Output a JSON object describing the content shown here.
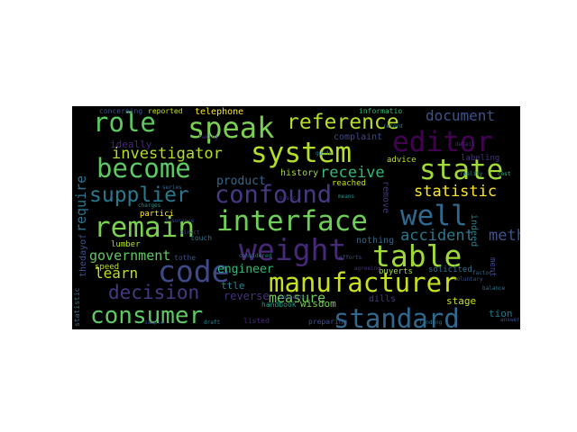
{
  "wordcloud": {
    "background": "#000000",
    "words": [
      {
        "text": "role",
        "color": "#5ec962"
      },
      {
        "text": "speak",
        "color": "#7ad151"
      },
      {
        "text": "reference",
        "color": "#b5de2b"
      },
      {
        "text": "document",
        "color": "#3b528b"
      },
      {
        "text": "editor",
        "color": "#440154"
      },
      {
        "text": "system",
        "color": "#b5de2b"
      },
      {
        "text": "become",
        "color": "#5ec962"
      },
      {
        "text": "investigator",
        "color": "#b5de2b"
      },
      {
        "text": "state",
        "color": "#a0da39"
      },
      {
        "text": "receive",
        "color": "#35b779"
      },
      {
        "text": "supplier",
        "color": "#2a788e"
      },
      {
        "text": "confound",
        "color": "#443983"
      },
      {
        "text": "statistic",
        "color": "#fde725"
      },
      {
        "text": "well",
        "color": "#31688e"
      },
      {
        "text": "remain",
        "color": "#7ad151"
      },
      {
        "text": "interface",
        "color": "#6ece58"
      },
      {
        "text": "method",
        "color": "#3b528b"
      },
      {
        "text": "accident",
        "color": "#2a788e"
      },
      {
        "text": "weight",
        "color": "#482878"
      },
      {
        "text": "table",
        "color": "#a0da39"
      },
      {
        "text": "government",
        "color": "#5ec962"
      },
      {
        "text": "code",
        "color": "#3e4989"
      },
      {
        "text": "learn",
        "color": "#bddf26"
      },
      {
        "text": "engineer",
        "color": "#35b779"
      },
      {
        "text": "manufacturer",
        "color": "#c8e020"
      },
      {
        "text": "decision",
        "color": "#443983"
      },
      {
        "text": "measure",
        "color": "#6ece58"
      },
      {
        "text": "standard",
        "color": "#31688e"
      },
      {
        "text": "consumer",
        "color": "#5ec962"
      },
      {
        "text": "require",
        "color": "#2c728e"
      },
      {
        "text": "telephone",
        "color": "#fde725"
      },
      {
        "text": "reported",
        "color": "#c8e020"
      },
      {
        "text": "concerning",
        "color": "#3b528b"
      },
      {
        "text": "ideally",
        "color": "#482878"
      },
      {
        "text": "complaint",
        "color": "#3e4989"
      },
      {
        "text": "advice",
        "color": "#bddf26"
      },
      {
        "text": "labeling",
        "color": "#46327e"
      },
      {
        "text": "informatio",
        "color": "#35b779"
      },
      {
        "text": "product",
        "color": "#31688e"
      },
      {
        "text": "history",
        "color": "#a0da39"
      },
      {
        "text": "reached",
        "color": "#c8e020"
      },
      {
        "text": "remove",
        "color": "#443983"
      },
      {
        "text": "indeed",
        "color": "#26828e"
      },
      {
        "text": "partici",
        "color": "#fde725"
      },
      {
        "text": "lumber",
        "color": "#b5de2b"
      },
      {
        "text": "nothing",
        "color": "#31688e"
      },
      {
        "text": "touch",
        "color": "#2a788e"
      },
      {
        "text": "tothe",
        "color": "#3b528b"
      },
      {
        "text": "speed",
        "color": "#bddf26"
      },
      {
        "text": "buyerts",
        "color": "#a0da39"
      },
      {
        "text": "solicited",
        "color": "#2c728e"
      },
      {
        "text": "stage",
        "color": "#c8e020"
      },
      {
        "text": "ttle",
        "color": "#26828e"
      },
      {
        "text": "reverse",
        "color": "#46327e"
      },
      {
        "text": "wisdom",
        "color": "#7ad151"
      },
      {
        "text": "dills",
        "color": "#443983"
      },
      {
        "text": "handbook",
        "color": "#1f9e89"
      },
      {
        "text": "preparing",
        "color": "#3b528b"
      },
      {
        "text": "listed",
        "color": "#482878"
      },
      {
        "text": "thedayof",
        "color": "#3b528b"
      },
      {
        "text": "ment",
        "color": "#3e4989"
      },
      {
        "text": "tion",
        "color": "#2a788e"
      },
      {
        "text": "statistic",
        "color": "#2c728e"
      },
      {
        "text": "solidate",
        "color": "#3b528b"
      },
      {
        "text": "considered",
        "color": "#26828e"
      },
      {
        "text": "efforts",
        "color": "#3b528b"
      },
      {
        "text": "agreeing",
        "color": "#46327e"
      },
      {
        "text": "charges",
        "color": "#21918c"
      },
      {
        "text": "insurance",
        "color": "#3e4989"
      },
      {
        "text": "balance",
        "color": "#2c728e"
      },
      {
        "text": "voluntary",
        "color": "#3b528b"
      },
      {
        "text": "cost",
        "color": "#35b779"
      },
      {
        "text": "reality",
        "color": "#26828e"
      },
      {
        "text": "taking",
        "color": "#482878"
      },
      {
        "text": "guide",
        "color": "#2a788e"
      },
      {
        "text": "factor",
        "color": "#31688e"
      },
      {
        "text": "direct",
        "color": "#3e4989"
      },
      {
        "text": "means",
        "color": "#21918c"
      },
      {
        "text": "detail",
        "color": "#46327e"
      },
      {
        "text": "answer",
        "color": "#3b528b"
      },
      {
        "text": "finding",
        "color": "#2c728e"
      },
      {
        "text": "draft",
        "color": "#26828e"
      },
      {
        "text": "sample",
        "color": "#3e4989"
      },
      {
        "text": "record",
        "color": "#2a788e"
      },
      {
        "text": "series",
        "color": "#31688e"
      },
      {
        "text": "basic",
        "color": "#46327e"
      }
    ]
  }
}
